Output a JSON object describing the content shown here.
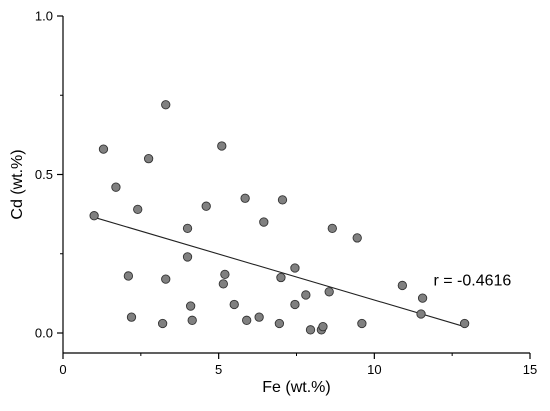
{
  "chart_data": {
    "type": "scatter",
    "title": "",
    "xlabel": "Fe (wt.%)",
    "ylabel": "Cd (wt.%)",
    "xlim": [
      0,
      15
    ],
    "ylim": [
      0,
      1.0
    ],
    "x_ticks": [
      0,
      5,
      10,
      15
    ],
    "y_ticks": [
      0.0,
      0.5,
      1.0
    ],
    "x_tick_labels": [
      "0",
      "5",
      "10",
      "15"
    ],
    "y_tick_labels": [
      "0.0",
      "0.5",
      "1.0"
    ],
    "grid": false,
    "marker_color": "#808080",
    "marker_edge_color": "#333333",
    "points": [
      {
        "x": 1.0,
        "y": 0.37
      },
      {
        "x": 1.3,
        "y": 0.58
      },
      {
        "x": 1.7,
        "y": 0.46
      },
      {
        "x": 2.1,
        "y": 0.18
      },
      {
        "x": 2.2,
        "y": 0.05
      },
      {
        "x": 2.4,
        "y": 0.39
      },
      {
        "x": 2.75,
        "y": 0.55
      },
      {
        "x": 3.2,
        "y": 0.03
      },
      {
        "x": 3.3,
        "y": 0.72
      },
      {
        "x": 3.3,
        "y": 0.17
      },
      {
        "x": 4.0,
        "y": 0.33
      },
      {
        "x": 4.0,
        "y": 0.24
      },
      {
        "x": 4.1,
        "y": 0.085
      },
      {
        "x": 4.15,
        "y": 0.04
      },
      {
        "x": 4.6,
        "y": 0.4
      },
      {
        "x": 5.1,
        "y": 0.59
      },
      {
        "x": 5.15,
        "y": 0.155
      },
      {
        "x": 5.2,
        "y": 0.185
      },
      {
        "x": 5.5,
        "y": 0.09
      },
      {
        "x": 5.85,
        "y": 0.425
      },
      {
        "x": 5.9,
        "y": 0.04
      },
      {
        "x": 6.3,
        "y": 0.05
      },
      {
        "x": 6.45,
        "y": 0.35
      },
      {
        "x": 6.95,
        "y": 0.03
      },
      {
        "x": 7.0,
        "y": 0.175
      },
      {
        "x": 7.05,
        "y": 0.42
      },
      {
        "x": 7.45,
        "y": 0.205
      },
      {
        "x": 7.45,
        "y": 0.09
      },
      {
        "x": 7.8,
        "y": 0.12
      },
      {
        "x": 7.95,
        "y": 0.01
      },
      {
        "x": 8.3,
        "y": 0.01
      },
      {
        "x": 8.35,
        "y": 0.02
      },
      {
        "x": 8.55,
        "y": 0.13
      },
      {
        "x": 8.65,
        "y": 0.33
      },
      {
        "x": 9.45,
        "y": 0.3
      },
      {
        "x": 9.6,
        "y": 0.03
      },
      {
        "x": 10.9,
        "y": 0.15
      },
      {
        "x": 11.5,
        "y": 0.06
      },
      {
        "x": 11.55,
        "y": 0.11
      },
      {
        "x": 12.9,
        "y": 0.03
      }
    ],
    "trendline": {
      "x": [
        1.0,
        12.9
      ],
      "y": [
        0.365,
        0.02
      ]
    },
    "annotations": [
      {
        "text": "r = -0.4616",
        "x": 11.9,
        "y": 0.165
      }
    ]
  }
}
